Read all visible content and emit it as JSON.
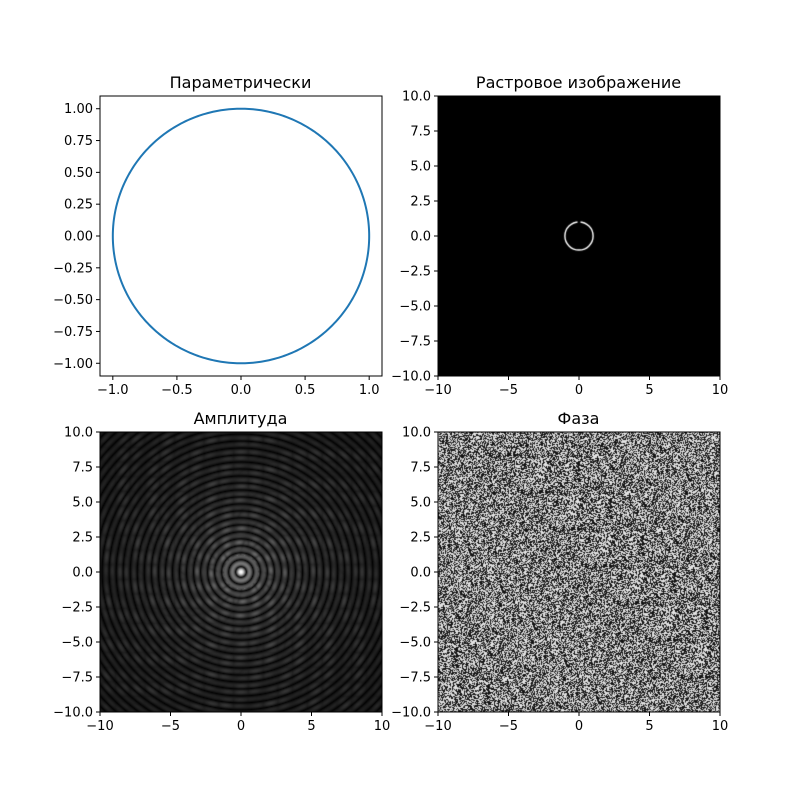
{
  "figure": {
    "background": "#ffffff"
  },
  "chart_data": [
    {
      "id": "param",
      "type": "line",
      "title": "Параметрически",
      "xlabel": "",
      "ylabel": "",
      "xlim": [
        -1.1,
        1.1
      ],
      "ylim": [
        -1.1,
        1.1
      ],
      "xticks": [
        -1.0,
        -0.5,
        0.0,
        0.5,
        1.0
      ],
      "xtick_labels": [
        "−1.0",
        "−0.5",
        "0.0",
        "0.5",
        "1.0"
      ],
      "yticks": [
        1.0,
        0.75,
        0.5,
        0.25,
        0.0,
        -0.25,
        -0.5,
        -0.75,
        -1.0
      ],
      "ytick_labels": [
        "1.00",
        "0.75",
        "0.50",
        "0.25",
        "0.00",
        "−0.25",
        "−0.50",
        "−0.75",
        "−1.00"
      ],
      "series": [
        {
          "description": "unit circle x=cos(t), y=sin(t)",
          "radius": 1.0,
          "color": "#1f77b4"
        }
      ],
      "grid": false
    },
    {
      "id": "raster",
      "type": "heatmap",
      "title": "Растровое изображение",
      "xlabel": "",
      "ylabel": "",
      "xlim": [
        -10,
        10
      ],
      "ylim": [
        -10,
        10
      ],
      "xticks": [
        -10,
        -5,
        0,
        5,
        10
      ],
      "xtick_labels": [
        "−10",
        "−5",
        "0",
        "5",
        "10"
      ],
      "yticks": [
        10.0,
        7.5,
        5.0,
        2.5,
        0.0,
        -2.5,
        -5.0,
        -7.5,
        -10.0
      ],
      "ytick_labels": [
        "10.0",
        "7.5",
        "5.0",
        "2.5",
        "0.0",
        "−2.5",
        "−5.0",
        "−7.5",
        "−10.0"
      ],
      "content": "white unit circle on black background",
      "circle_radius": 1.0,
      "colormap": "gray"
    },
    {
      "id": "amplitude",
      "type": "heatmap",
      "title": "Амплитуда",
      "xlabel": "",
      "ylabel": "",
      "xlim": [
        -10,
        10
      ],
      "ylim": [
        -10,
        10
      ],
      "xticks": [
        -10,
        -5,
        0,
        5,
        10
      ],
      "xtick_labels": [
        "−10",
        "−5",
        "0",
        "5",
        "10"
      ],
      "yticks": [
        10.0,
        7.5,
        5.0,
        2.5,
        0.0,
        -2.5,
        -5.0,
        -7.5,
        -10.0
      ],
      "ytick_labels": [
        "10.0",
        "7.5",
        "5.0",
        "2.5",
        "0.0",
        "−2.5",
        "−5.0",
        "−7.5",
        "−10.0"
      ],
      "content": "Fourier amplitude: bright central peak with concentric rings decaying outward",
      "colormap": "gray"
    },
    {
      "id": "phase",
      "type": "heatmap",
      "title": "Фаза",
      "xlabel": "",
      "ylabel": "",
      "xlim": [
        -10,
        10
      ],
      "ylim": [
        -10,
        10
      ],
      "xticks": [
        -10,
        -5,
        0,
        5,
        10
      ],
      "xtick_labels": [
        "−10",
        "−5",
        "0",
        "5",
        "10"
      ],
      "yticks": [
        10.0,
        7.5,
        5.0,
        2.5,
        0.0,
        -2.5,
        -5.0,
        -7.5,
        -10.0
      ],
      "ytick_labels": [
        "10.0",
        "7.5",
        "5.0",
        "2.5",
        "0.0",
        "−2.5",
        "−5.0",
        "−7.5",
        "−10.0"
      ],
      "content": "Fourier phase: noisy black/white speckle pattern",
      "colormap": "gray"
    }
  ]
}
